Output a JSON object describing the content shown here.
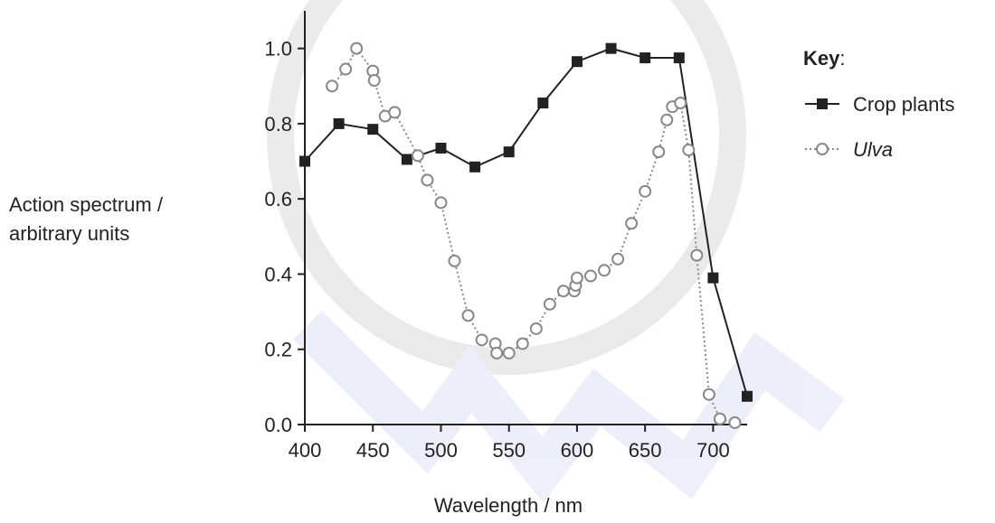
{
  "chart_data": {
    "type": "line",
    "xlabel": "Wavelength / nm",
    "ylabel_lines": [
      "Action spectrum /",
      "arbitrary units"
    ],
    "xlim": [
      400,
      725
    ],
    "ylim": [
      0,
      1.1
    ],
    "xticks": [
      400,
      450,
      500,
      550,
      600,
      650,
      700
    ],
    "yticks": [
      0,
      0.2,
      0.4,
      0.6,
      0.8,
      1.0
    ],
    "xtick_labels": [
      "400",
      "450",
      "500",
      "550",
      "600",
      "650",
      "700"
    ],
    "ytick_labels": [
      "0.0",
      "0.2",
      "0.4",
      "0.6",
      "0.8",
      "1.0"
    ],
    "grid": false,
    "legend_placement": "top-right",
    "legend": {
      "title": "Key",
      "title_suffix": ":",
      "entries": [
        "Crop plants",
        "Ulva"
      ]
    },
    "series": [
      {
        "name": "Crop plants",
        "style": "solid",
        "marker": "filled-square",
        "color": "#222222",
        "x": [
          400,
          425,
          450,
          475,
          500,
          525,
          550,
          575,
          600,
          625,
          650,
          675,
          700,
          725
        ],
        "y": [
          0.7,
          0.8,
          0.785,
          0.705,
          0.735,
          0.685,
          0.725,
          0.855,
          0.965,
          1.0,
          0.975,
          0.975,
          0.39,
          0.075
        ]
      },
      {
        "name": "Ulva",
        "style": "dotted",
        "marker": "open-circle",
        "color": "#888888",
        "x": [
          420,
          430,
          438,
          450,
          451,
          459,
          466,
          483,
          490,
          500,
          510,
          520,
          530,
          540,
          541,
          550,
          560,
          570,
          580,
          590,
          598,
          599,
          600,
          610,
          620,
          630,
          640,
          650,
          660,
          666,
          670,
          676,
          682,
          688,
          697,
          705,
          716
        ],
        "y": [
          0.9,
          0.945,
          1.0,
          0.94,
          0.915,
          0.82,
          0.83,
          0.715,
          0.65,
          0.59,
          0.435,
          0.29,
          0.225,
          0.215,
          0.19,
          0.19,
          0.215,
          0.255,
          0.32,
          0.355,
          0.355,
          0.37,
          0.39,
          0.395,
          0.41,
          0.44,
          0.535,
          0.62,
          0.725,
          0.81,
          0.845,
          0.855,
          0.73,
          0.45,
          0.08,
          0.015,
          0.005
        ]
      }
    ]
  }
}
